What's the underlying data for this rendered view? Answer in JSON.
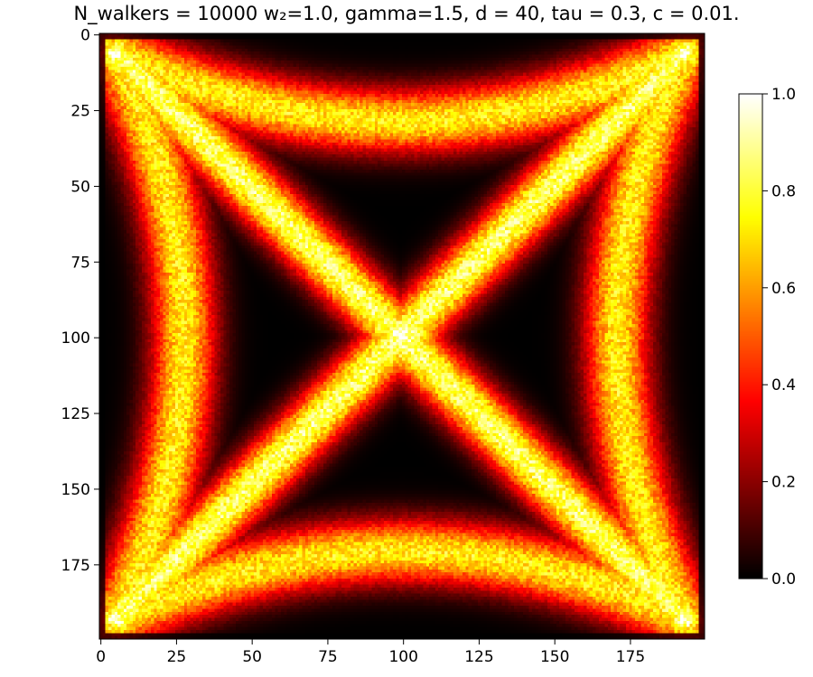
{
  "chart_data": {
    "type": "heatmap",
    "title": "N_walkers = 10000 w₂=1.0, gamma=1.5, d = 40, tau = 0.3, c = 0.01.",
    "xlabel": "",
    "ylabel": "",
    "x_range": [
      0,
      199
    ],
    "y_range": [
      0,
      199
    ],
    "y_inverted": true,
    "grid": false,
    "x_ticks": [
      "0",
      "25",
      "50",
      "75",
      "100",
      "125",
      "150",
      "175"
    ],
    "x_tick_values": [
      0,
      25,
      50,
      75,
      100,
      125,
      150,
      175
    ],
    "y_ticks": [
      "0",
      "25",
      "50",
      "75",
      "100",
      "125",
      "150",
      "175"
    ],
    "y_tick_values": [
      0,
      25,
      50,
      75,
      100,
      125,
      150,
      175
    ],
    "colormap": "hot",
    "colorbar": {
      "range": [
        0.0,
        1.0
      ],
      "ticks": [
        "0.0",
        "0.2",
        "0.4",
        "0.6",
        "0.8",
        "1.0"
      ],
      "tick_values": [
        0.0,
        0.2,
        0.4,
        0.6,
        0.8,
        1.0
      ],
      "placement": "right"
    },
    "features": {
      "corners": [
        [
          5,
          6
        ],
        [
          193,
          6
        ],
        [
          5,
          193
        ],
        [
          193,
          193
        ]
      ],
      "center": [
        100,
        100
      ],
      "description_values": {
        "center_peak": 0.95,
        "corner_peak": 1.0,
        "diagonal_band": 0.85,
        "arc_band": 0.75,
        "background": 0.0
      }
    }
  }
}
